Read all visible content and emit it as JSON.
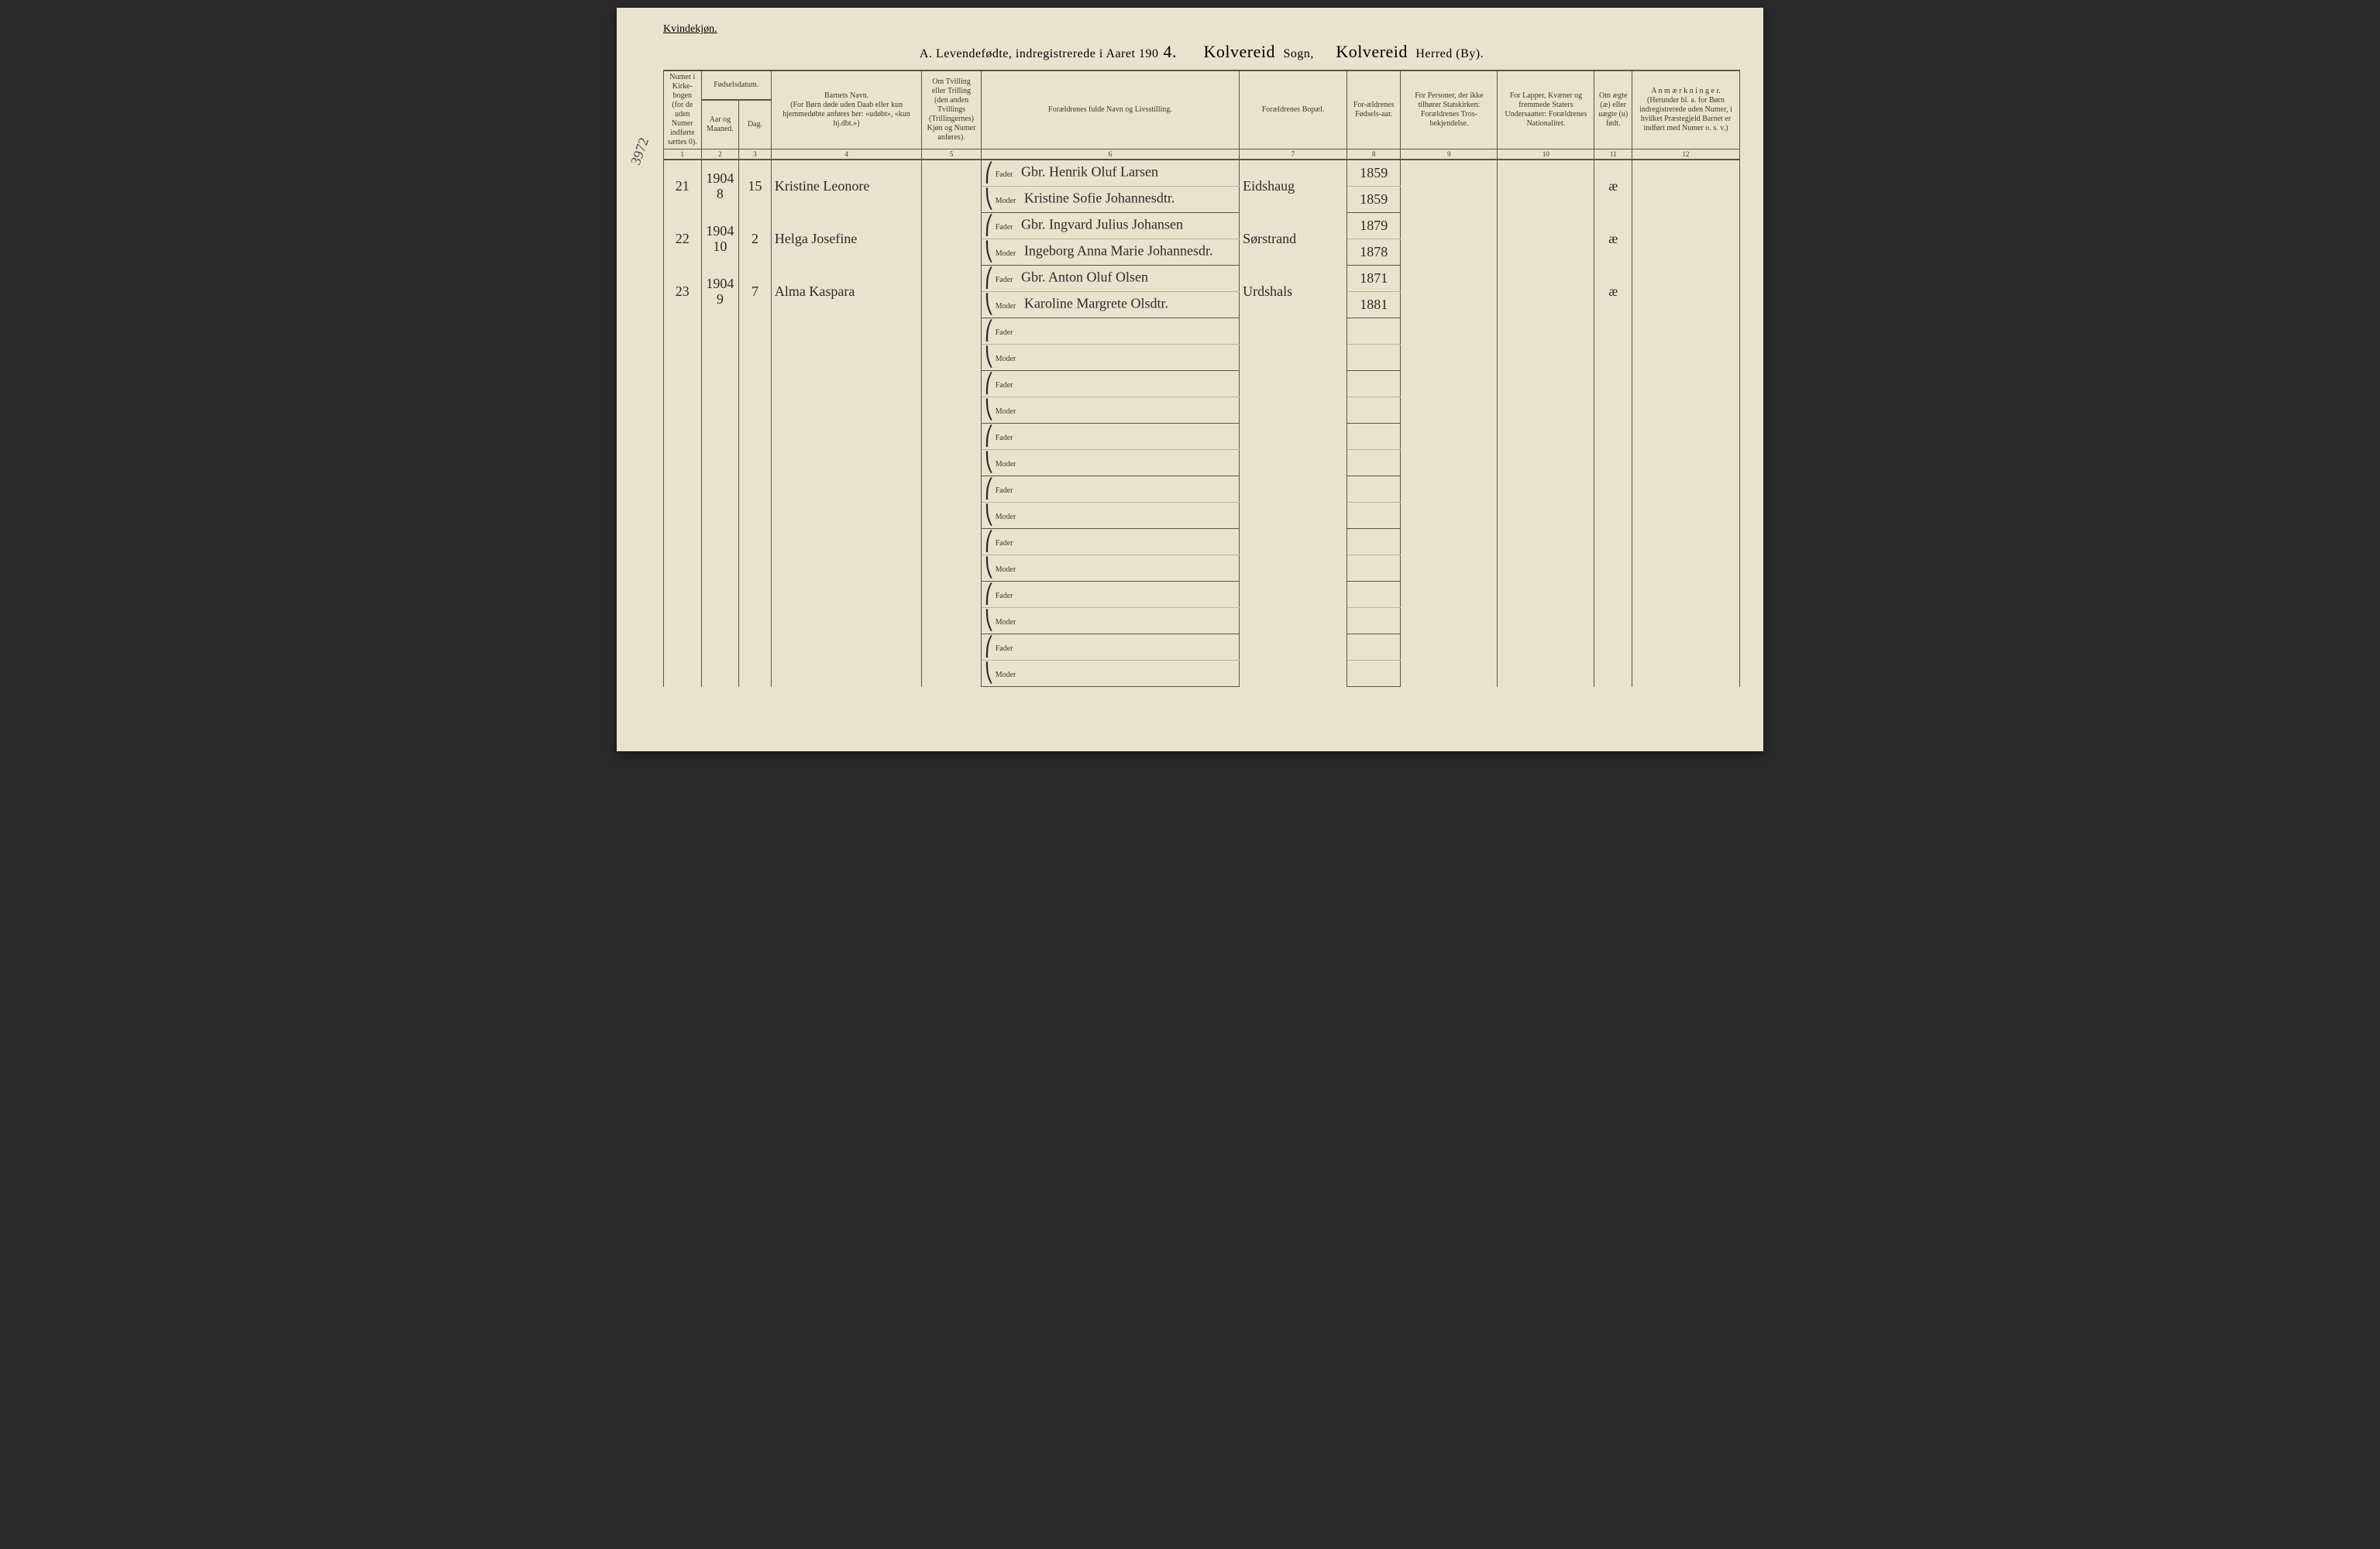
{
  "gender_label": "Kvindekjøn.",
  "title": {
    "prefix": "A.  Levendefødte, indregistrerede i Aaret 190",
    "year_suffix": "4.",
    "sogn_value": "Kolvereid",
    "sogn_label": "Sogn,",
    "herred_value": "Kolvereid",
    "herred_label": "Herred (By)."
  },
  "margin_note": "3972",
  "headers": {
    "c1": "Numer i Kirke-bogen (for de uden Numer indførte sættes 0).",
    "c2_top": "Fødselsdatum.",
    "c2a": "Aar og Maaned.",
    "c2b": "Dag.",
    "c4": "Barnets Navn.\n(For Børn døde uden Daab eller kun hjemmedøbte anføres her: «udøbt», «kun hj.dbt.»)",
    "c5": "Om Tvilling eller Trilling (den anden Tvillings (Trillingernes) Kjøn og Numer anføres).",
    "c6": "Forældrenes fulde Navn og Livsstilling.",
    "c7": "Forældrenes Bopæl.",
    "c8": "For-ældrenes Fødsels-aar.",
    "c9": "For Personer, der ikke tilhører Statskirken: Forældrenes Tros-bekjendelse.",
    "c10": "For Lapper, Kvæner og fremmede Staters Undersaatter: Forældrenes Nationalitet.",
    "c11": "Om ægte (æ) eller uægte (u) født.",
    "c12": "A n m æ r k n i n g e r.\n(Herunder bl. a. for Børn indregistrerede uden Numer, i hvilket Præstegjeld Barnet er indført med Numer o. s. v.)"
  },
  "colnums": [
    "1",
    "2",
    "3",
    "4",
    "5",
    "6",
    "7",
    "8",
    "9",
    "10",
    "11",
    "12"
  ],
  "fm": {
    "fader": "Fader",
    "moder": "Moder"
  },
  "rows": [
    {
      "num": "21",
      "year_month": "1904\n8",
      "day": "15",
      "child": "Kristine Leonore",
      "father": "Gbr. Henrik Oluf Larsen",
      "mother": "Kristine Sofie Johannesdtr.",
      "residence": "Eidshaug",
      "father_year": "1859",
      "mother_year": "1859",
      "legit": "æ"
    },
    {
      "num": "22",
      "year_month": "1904\n10",
      "day": "2",
      "child": "Helga Josefine",
      "father": "Gbr. Ingvard Julius Johansen",
      "mother": "Ingeborg Anna Marie Johannesdr.",
      "residence": "Sørstrand",
      "father_year": "1879",
      "mother_year": "1878",
      "legit": "æ"
    },
    {
      "num": "23",
      "year_month": "1904\n9",
      "day": "7",
      "child": "Alma Kaspara",
      "father": "Gbr. Anton Oluf Olsen",
      "mother": "Karoline Margrete Olsdtr.",
      "residence": "Urdshals",
      "father_year": "1871",
      "mother_year": "1881",
      "legit": "æ"
    }
  ],
  "empty_rows": 7,
  "col_widths_pct": [
    3.5,
    3.5,
    3,
    14,
    5.5,
    24,
    10,
    5,
    9,
    9,
    3.5,
    10
  ],
  "colors": {
    "paper": "#e8e3cc",
    "ink_print": "#3c3a2e",
    "ink_hand": "#2a2a2a",
    "rule": "#5a5643",
    "page_bg": "#2a2a2a"
  }
}
